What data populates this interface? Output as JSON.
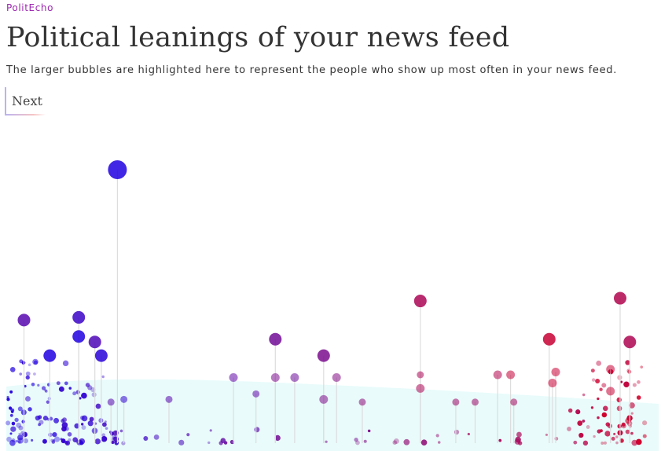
{
  "app": {
    "brand": "PolitEcho"
  },
  "header": {
    "title": "Political leanings of your news feed",
    "subtitle": "The larger bubbles are highlighted here to represent the people who show up most often in your news feed."
  },
  "controls": {
    "next_label": "Next"
  },
  "colors": {
    "liberal": "#2000e0",
    "center": "#7b0e8e",
    "conservative": "#d0002a",
    "background_band": "#e9fbfb",
    "stem": "#dddddd"
  },
  "chart_data": {
    "type": "scatter",
    "x_scale": "political leaning, liberal (left) to conservative (right)",
    "y_scale": "frequency in news feed",
    "xlim": [
      0,
      1
    ],
    "highlighted": [
      {
        "x": 0.17,
        "y": 1.0,
        "size": 5,
        "tone": 0.0
      },
      {
        "x": 0.025,
        "y": 0.45,
        "size": 3,
        "tone": 0.3
      },
      {
        "x": 0.11,
        "y": 0.46,
        "size": 3,
        "tone": 0.15
      },
      {
        "x": 0.11,
        "y": 0.39,
        "size": 3,
        "tone": 0.0
      },
      {
        "x": 0.135,
        "y": 0.37,
        "size": 3,
        "tone": 0.25
      },
      {
        "x": 0.065,
        "y": 0.32,
        "size": 3,
        "tone": 0.0
      },
      {
        "x": 0.145,
        "y": 0.32,
        "size": 3,
        "tone": 0.05
      },
      {
        "x": 0.415,
        "y": 0.38,
        "size": 3,
        "tone": 0.45
      },
      {
        "x": 0.49,
        "y": 0.32,
        "size": 3,
        "tone": 0.5
      },
      {
        "x": 0.415,
        "y": 0.24,
        "size": 2,
        "tone": 0.5
      },
      {
        "x": 0.49,
        "y": 0.16,
        "size": 2,
        "tone": 0.52
      },
      {
        "x": 0.64,
        "y": 0.52,
        "size": 3,
        "tone": 0.78
      },
      {
        "x": 0.84,
        "y": 0.38,
        "size": 3,
        "tone": 0.95
      },
      {
        "x": 0.95,
        "y": 0.53,
        "size": 3,
        "tone": 0.82
      },
      {
        "x": 0.965,
        "y": 0.37,
        "size": 3,
        "tone": 0.8
      },
      {
        "x": 0.78,
        "y": 0.25,
        "size": 2,
        "tone": 0.93
      },
      {
        "x": 0.845,
        "y": 0.22,
        "size": 2,
        "tone": 0.95
      },
      {
        "x": 0.85,
        "y": 0.26,
        "size": 2,
        "tone": 0.95
      },
      {
        "x": 0.935,
        "y": 0.27,
        "size": 2,
        "tone": 0.95
      },
      {
        "x": 0.935,
        "y": 0.19,
        "size": 2,
        "tone": 0.95
      },
      {
        "x": 0.55,
        "y": 0.15,
        "size": 1,
        "tone": 0.6
      },
      {
        "x": 0.695,
        "y": 0.15,
        "size": 1,
        "tone": 0.7
      },
      {
        "x": 0.725,
        "y": 0.15,
        "size": 1,
        "tone": 0.7
      },
      {
        "x": 0.785,
        "y": 0.15,
        "size": 1,
        "tone": 0.75
      },
      {
        "x": 0.35,
        "y": 0.24,
        "size": 2,
        "tone": 0.35
      },
      {
        "x": 0.445,
        "y": 0.24,
        "size": 2,
        "tone": 0.42
      },
      {
        "x": 0.51,
        "y": 0.24,
        "size": 2,
        "tone": 0.55
      },
      {
        "x": 0.64,
        "y": 0.25,
        "size": 1,
        "tone": 0.78
      },
      {
        "x": 0.64,
        "y": 0.2,
        "size": 2,
        "tone": 0.78
      },
      {
        "x": 0.76,
        "y": 0.25,
        "size": 2,
        "tone": 0.82
      },
      {
        "x": 0.18,
        "y": 0.16,
        "size": 1,
        "tone": 0.1
      },
      {
        "x": 0.25,
        "y": 0.16,
        "size": 1,
        "tone": 0.3
      },
      {
        "x": 0.385,
        "y": 0.18,
        "size": 1,
        "tone": 0.35
      },
      {
        "x": 0.16,
        "y": 0.15,
        "size": 1,
        "tone": 0.3
      }
    ]
  }
}
